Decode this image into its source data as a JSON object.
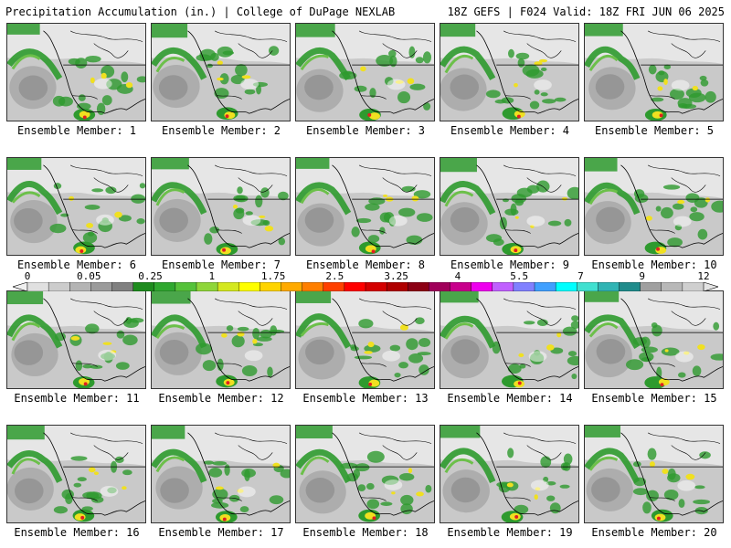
{
  "header": {
    "left": "Precipitation Accumulation (in.) | College of DuPage NEXLAB",
    "right": "18Z GEFS | F024 Valid: 18Z FRI JUN 06 2025"
  },
  "panels": [
    {
      "label": "Ensemble Member: 1"
    },
    {
      "label": "Ensemble Member: 2"
    },
    {
      "label": "Ensemble Member: 3"
    },
    {
      "label": "Ensemble Member: 4"
    },
    {
      "label": "Ensemble Member: 5"
    },
    {
      "label": "Ensemble Member: 6"
    },
    {
      "label": "Ensemble Member: 7"
    },
    {
      "label": "Ensemble Member: 8"
    },
    {
      "label": "Ensemble Member: 9"
    },
    {
      "label": "Ensemble Member: 10"
    },
    {
      "label": "Ensemble Member: 11"
    },
    {
      "label": "Ensemble Member: 12"
    },
    {
      "label": "Ensemble Member: 13"
    },
    {
      "label": "Ensemble Member: 14"
    },
    {
      "label": "Ensemble Member: 15"
    },
    {
      "label": "Ensemble Member: 16"
    },
    {
      "label": "Ensemble Member: 17"
    },
    {
      "label": "Ensemble Member: 18"
    },
    {
      "label": "Ensemble Member: 19"
    },
    {
      "label": "Ensemble Member: 20"
    }
  ],
  "colorbar": {
    "tick_labels": [
      "0",
      "0.05",
      "0.25",
      "1",
      "1.75",
      "2.5",
      "3.25",
      "4",
      "5.5",
      "7",
      "9",
      "12"
    ],
    "colors": [
      "#f0f0f0",
      "#e0e0e0",
      "#cccccc",
      "#b4b4b4",
      "#9b9b9b",
      "#808080",
      "#1e8c1e",
      "#2fa82f",
      "#55c23a",
      "#8fd63a",
      "#d4e81f",
      "#ffff00",
      "#ffd400",
      "#ffaa00",
      "#ff7f00",
      "#ff4000",
      "#ff0000",
      "#d40000",
      "#b00000",
      "#8c0014",
      "#a0005a",
      "#c8008c",
      "#ee00ee",
      "#c060ff",
      "#8080ff",
      "#40a0ff",
      "#00ffff",
      "#40e0d0",
      "#30b4b4",
      "#208c8c",
      "#a0a0a0",
      "#b8b8b8",
      "#cfcfcf",
      "#e4e4e4"
    ]
  },
  "map_colors": {
    "ocean_gray": "#c9c9c9",
    "light_gray": "#e6e6e6",
    "green": "#2e9a2e",
    "light_green": "#6cc04a",
    "yellow": "#f0e020",
    "red": "#e02020",
    "white": "#ffffff",
    "border": "#000000"
  }
}
